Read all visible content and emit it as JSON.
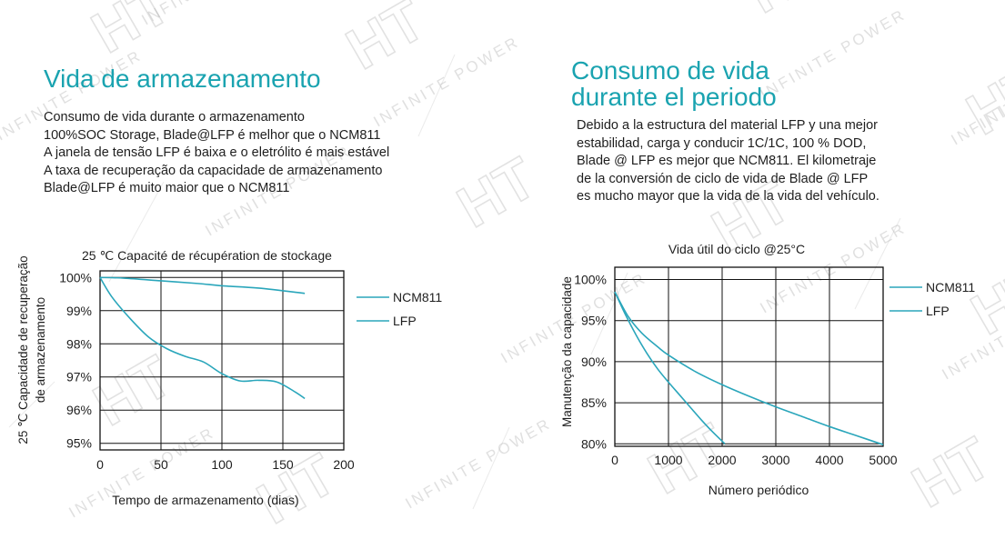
{
  "watermark": {
    "logo": "HT",
    "text": "INFINITE POWER",
    "color": "#9a9a9a"
  },
  "colors": {
    "accent": "#1aa3b0",
    "series": "#2aa6bb"
  },
  "left": {
    "title": "Vida de armazenamento",
    "lines": [
      "Consumo de vida durante o armazenamento",
      "100%SOC Storage, Blade@LFP é melhor que o NCM811",
      "A janela de tensão LFP é baixa e o eletrólito é mais estável",
      "A taxa de recuperação da capacidade de armazenamento",
      "Blade@LFP é muito maior que o NCM811"
    ]
  },
  "right": {
    "title_line1": "Consumo de vida",
    "title_line2": "durante el periodo",
    "lines": [
      "Debido a la estructura del material LFP y una mejor",
      "estabilidad, carga y conducir 1C/1C, 100 % DOD,",
      "Blade @ LFP es mejor que NCM811. El kilometraje",
      "de la conversión de ciclo de vida de Blade @ LFP",
      "es mucho mayor que la vida de la vida del vehículo."
    ]
  },
  "chart_data": [
    {
      "type": "line",
      "title": "25 ℃ Capacité de récupération de stockage",
      "xlabel": "Tempo de armazenamento (dias)",
      "ylabel_line1": "25 ℃ Capacidade de recuperação",
      "ylabel_line2": "de armazenamento",
      "xlim": [
        0,
        200
      ],
      "ylim": [
        94.8,
        100.2
      ],
      "xticks": [
        0,
        50,
        100,
        150,
        200
      ],
      "yticks": [
        95,
        96,
        97,
        98,
        99,
        100
      ],
      "ytick_labels": [
        "95%",
        "96%",
        "97%",
        "98%",
        "99%",
        "100%"
      ],
      "grid": true,
      "legend_position": "right",
      "series": [
        {
          "name": "NCM811",
          "x": [
            0,
            20,
            50,
            80,
            100,
            130,
            168
          ],
          "y": [
            100,
            99.98,
            99.9,
            99.82,
            99.75,
            99.68,
            99.52
          ]
        },
        {
          "name": "LFP",
          "x": [
            0,
            10,
            25,
            40,
            55,
            70,
            85,
            100,
            115,
            130,
            145,
            160,
            168
          ],
          "y": [
            100,
            99.4,
            98.75,
            98.2,
            97.85,
            97.62,
            97.45,
            97.1,
            96.88,
            96.9,
            96.85,
            96.55,
            96.35
          ]
        }
      ]
    },
    {
      "type": "line",
      "title": "Vida útil do ciclo @25°C",
      "xlabel": "Número periódico",
      "ylabel": "Manutenção da capacidade",
      "xlim": [
        0,
        5000
      ],
      "ylim": [
        79.7,
        101.5
      ],
      "xticks": [
        0,
        1000,
        2000,
        3000,
        4000,
        5000
      ],
      "yticks": [
        80,
        85,
        90,
        95,
        100
      ],
      "ytick_labels": [
        "80%",
        "85%",
        "90%",
        "95%",
        "100%"
      ],
      "grid": true,
      "legend_position": "right",
      "series": [
        {
          "name": "NCM811",
          "x": [
            0,
            200,
            400,
            600,
            800,
            1000,
            1200,
            1400,
            1600,
            1800,
            2050
          ],
          "y": [
            98.5,
            95.7,
            93.2,
            91,
            89.1,
            87.5,
            86,
            84.5,
            83,
            81.6,
            80
          ]
        },
        {
          "name": "LFP",
          "x": [
            0,
            250,
            500,
            800,
            1000,
            1500,
            2000,
            2500,
            3000,
            3500,
            4000,
            4500,
            5000
          ],
          "y": [
            98.5,
            95.5,
            93.5,
            91.8,
            90.8,
            88.8,
            87.2,
            85.8,
            84.5,
            83.3,
            82.1,
            81,
            79.9
          ]
        }
      ]
    }
  ]
}
